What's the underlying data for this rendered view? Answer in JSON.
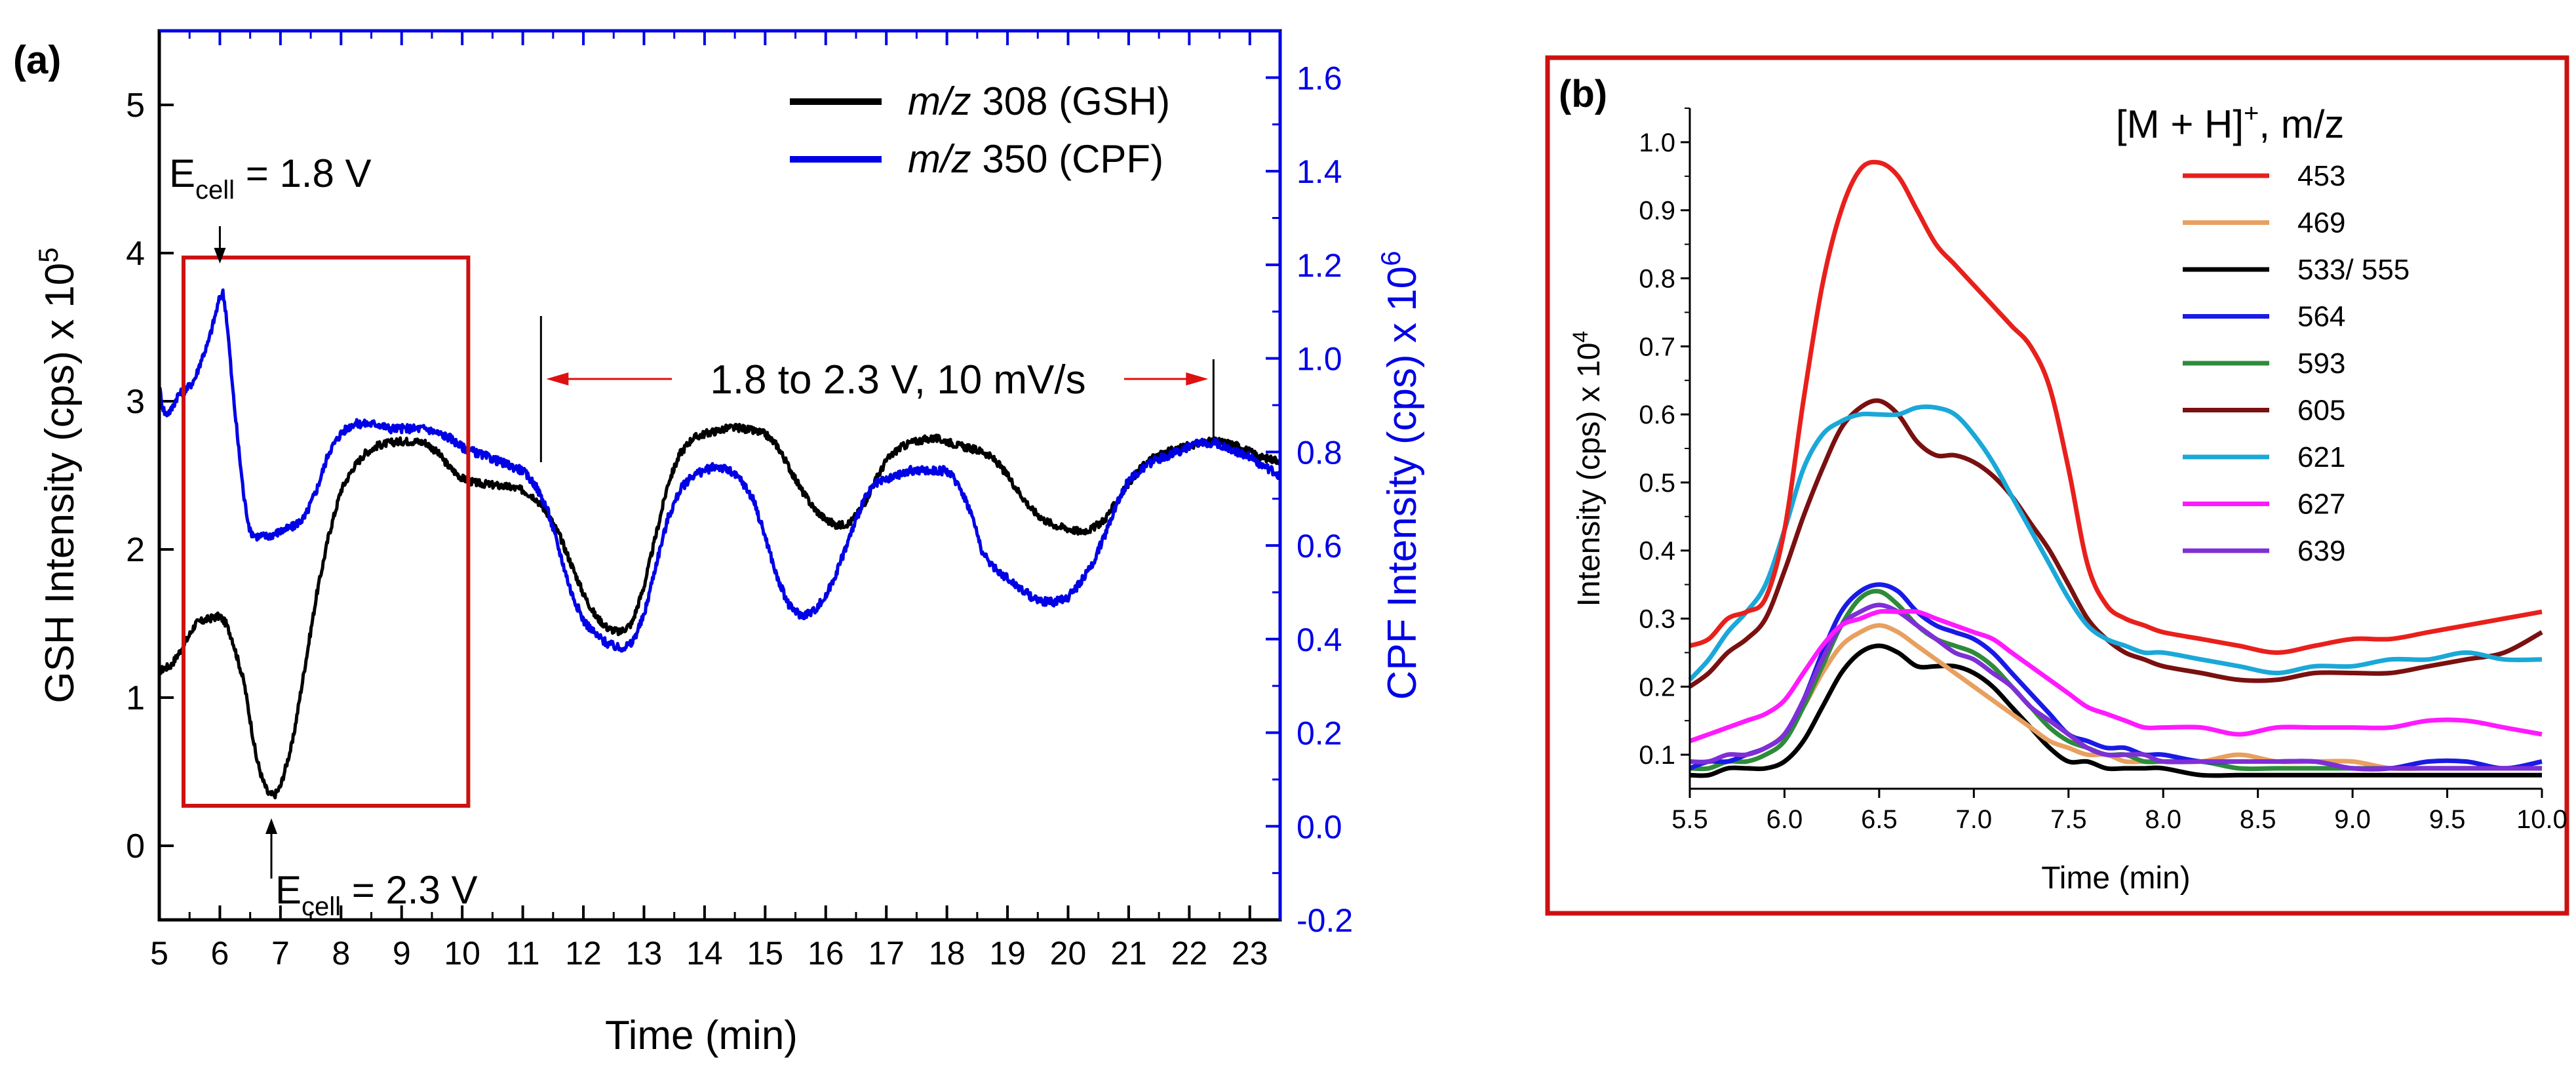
{
  "figure": {
    "panel_a_label": "(a)",
    "panel_b_label": "(b)",
    "colors": {
      "gsh": "#000000",
      "cpf": "#0000e6",
      "red_box": "#cc1111",
      "red_arrow": "#dd1111"
    }
  },
  "chart_data": [
    {
      "type": "line",
      "panel": "(a)",
      "xlabel": "Time (min)",
      "ylabel_left": {
        "text": "GSH Intensity (cps) x 10",
        "superscript": "5"
      },
      "ylabel_right": {
        "text": "CPF Intensity (cps) x 10",
        "superscript": "6"
      },
      "xlim": [
        5,
        23.5
      ],
      "ylim_left": [
        -0.5,
        5.5
      ],
      "ylim_right": [
        -0.2,
        1.7
      ],
      "xticks": [
        5,
        6,
        7,
        8,
        9,
        10,
        11,
        12,
        13,
        14,
        15,
        16,
        17,
        18,
        19,
        20,
        21,
        22,
        23
      ],
      "yticks_left": [
        0,
        1,
        2,
        3,
        4,
        5
      ],
      "yticks_right": [
        -0.2,
        0.0,
        0.2,
        0.4,
        0.6,
        0.8,
        1.0,
        1.2,
        1.4,
        1.6
      ],
      "legend": [
        {
          "prefix": "m/z",
          "text": " 308 (GSH)",
          "color": "#000000"
        },
        {
          "prefix": "m/z",
          "text": " 350 (CPF)",
          "color": "#0000e6"
        }
      ],
      "series": [
        {
          "name": "m/z 308 (GSH)",
          "axis": "left",
          "color": "#000000",
          "x": [
            5.0,
            5.2,
            5.4,
            5.6,
            5.8,
            6.0,
            6.1,
            6.2,
            6.4,
            6.5,
            6.6,
            6.7,
            6.8,
            6.9,
            7.0,
            7.2,
            7.4,
            7.6,
            7.8,
            8.0,
            8.2,
            8.4,
            8.6,
            8.8,
            9.0,
            9.2,
            9.4,
            9.6,
            9.8,
            10.0,
            10.2,
            10.4,
            10.6,
            10.8,
            11.0,
            11.2,
            11.4,
            11.6,
            11.8,
            12.0,
            12.2,
            12.4,
            12.6,
            12.8,
            13.0,
            13.2,
            13.4,
            13.6,
            13.8,
            14.0,
            14.2,
            14.4,
            14.6,
            14.8,
            15.0,
            15.2,
            15.4,
            15.6,
            15.8,
            16.0,
            16.2,
            16.4,
            16.6,
            16.8,
            17.0,
            17.2,
            17.4,
            17.6,
            17.8,
            18.0,
            18.2,
            18.4,
            18.6,
            18.8,
            19.0,
            19.2,
            19.4,
            19.6,
            19.8,
            20.0,
            20.2,
            20.4,
            20.6,
            20.8,
            21.0,
            21.2,
            21.4,
            21.6,
            21.8,
            22.0,
            22.2,
            22.4,
            22.6,
            22.8,
            23.0,
            23.2,
            23.5
          ],
          "y": [
            1.18,
            1.22,
            1.35,
            1.5,
            1.53,
            1.55,
            1.5,
            1.4,
            1.1,
            0.85,
            0.6,
            0.45,
            0.35,
            0.34,
            0.4,
            0.7,
            1.2,
            1.7,
            2.1,
            2.4,
            2.55,
            2.65,
            2.7,
            2.72,
            2.73,
            2.73,
            2.72,
            2.65,
            2.55,
            2.48,
            2.45,
            2.44,
            2.43,
            2.42,
            2.4,
            2.35,
            2.25,
            2.1,
            1.9,
            1.7,
            1.55,
            1.47,
            1.44,
            1.5,
            1.75,
            2.1,
            2.45,
            2.65,
            2.75,
            2.78,
            2.8,
            2.82,
            2.82,
            2.8,
            2.78,
            2.7,
            2.55,
            2.4,
            2.28,
            2.2,
            2.16,
            2.18,
            2.28,
            2.45,
            2.6,
            2.68,
            2.72,
            2.74,
            2.75,
            2.73,
            2.7,
            2.68,
            2.66,
            2.6,
            2.5,
            2.38,
            2.27,
            2.2,
            2.16,
            2.14,
            2.12,
            2.14,
            2.2,
            2.32,
            2.45,
            2.55,
            2.62,
            2.65,
            2.68,
            2.7,
            2.72,
            2.73,
            2.72,
            2.7,
            2.66,
            2.62,
            2.6
          ]
        },
        {
          "name": "m/z 350 (CPF)",
          "axis": "right",
          "color": "#0000e6",
          "x": [
            5.0,
            5.05,
            5.1,
            5.2,
            5.3,
            5.5,
            5.6,
            5.7,
            5.8,
            5.9,
            6.0,
            6.05,
            6.1,
            6.15,
            6.2,
            6.3,
            6.4,
            6.5,
            6.6,
            6.8,
            7.0,
            7.2,
            7.4,
            7.6,
            7.8,
            8.0,
            8.2,
            8.4,
            8.6,
            8.8,
            9.0,
            9.2,
            9.4,
            9.6,
            9.8,
            10.0,
            10.2,
            10.4,
            10.6,
            10.8,
            11.0,
            11.2,
            11.4,
            11.6,
            11.8,
            12.0,
            12.2,
            12.4,
            12.6,
            12.8,
            13.0,
            13.2,
            13.4,
            13.6,
            13.8,
            14.0,
            14.2,
            14.4,
            14.6,
            14.8,
            15.0,
            15.2,
            15.4,
            15.6,
            15.8,
            16.0,
            16.2,
            16.4,
            16.6,
            16.8,
            17.0,
            17.2,
            17.4,
            17.6,
            17.8,
            18.0,
            18.2,
            18.4,
            18.6,
            18.8,
            19.0,
            19.2,
            19.4,
            19.6,
            19.8,
            20.0,
            20.2,
            20.4,
            20.6,
            20.8,
            21.0,
            21.2,
            21.4,
            21.6,
            21.8,
            22.0,
            22.2,
            22.4,
            22.6,
            22.8,
            23.0,
            23.2,
            23.5
          ],
          "y": [
            0.94,
            0.9,
            0.88,
            0.89,
            0.92,
            0.94,
            0.96,
            1.0,
            1.03,
            1.08,
            1.13,
            1.14,
            1.1,
            1.03,
            0.95,
            0.82,
            0.7,
            0.63,
            0.62,
            0.62,
            0.63,
            0.64,
            0.66,
            0.72,
            0.8,
            0.84,
            0.86,
            0.86,
            0.86,
            0.85,
            0.85,
            0.85,
            0.85,
            0.84,
            0.83,
            0.81,
            0.8,
            0.79,
            0.78,
            0.77,
            0.76,
            0.73,
            0.68,
            0.59,
            0.5,
            0.44,
            0.41,
            0.39,
            0.38,
            0.39,
            0.45,
            0.56,
            0.66,
            0.72,
            0.75,
            0.76,
            0.77,
            0.76,
            0.74,
            0.7,
            0.62,
            0.53,
            0.47,
            0.45,
            0.46,
            0.49,
            0.55,
            0.62,
            0.69,
            0.73,
            0.74,
            0.75,
            0.76,
            0.76,
            0.76,
            0.76,
            0.73,
            0.67,
            0.58,
            0.55,
            0.53,
            0.51,
            0.49,
            0.48,
            0.48,
            0.49,
            0.52,
            0.56,
            0.62,
            0.69,
            0.74,
            0.76,
            0.78,
            0.79,
            0.8,
            0.81,
            0.82,
            0.82,
            0.81,
            0.8,
            0.79,
            0.77,
            0.75
          ]
        }
      ],
      "annotations": {
        "ecell_top": {
          "text": "E",
          "subscript": "cell",
          "suffix": " = 1.8 V",
          "x": 6.0
        },
        "ecell_bottom": {
          "text": "E",
          "subscript": "cell",
          "suffix": " = 2.3 V",
          "x": 6.85
        },
        "sweep_label": "1.8 to 2.3 V, 10 mV/s",
        "sweep_range": [
          11.3,
          22.4
        ],
        "highlight_box": {
          "x": [
            5.4,
            10.1
          ],
          "y": [
            0.27,
            3.97
          ]
        }
      }
    },
    {
      "type": "line",
      "panel": "(b)",
      "xlabel": "Time (min)",
      "ylabel": {
        "text": "Intensity (cps) x 10",
        "superscript": "4"
      },
      "legend_title": {
        "text": "[M + H]",
        "superscript": "+",
        "suffix": ", m/z"
      },
      "xlim": [
        5.5,
        10.0
      ],
      "ylim": [
        0.05,
        1.05
      ],
      "xticks": [
        5.5,
        6.0,
        6.5,
        7.0,
        7.5,
        8.0,
        8.5,
        9.0,
        9.5,
        10.0
      ],
      "xtick_labels": [
        "5.5",
        "6.0",
        "6.5",
        "7.0",
        "7.5",
        "8.0",
        "8.5",
        "9.0",
        "9.5",
        "10.0"
      ],
      "yticks": [
        0.1,
        0.2,
        0.3,
        0.4,
        0.5,
        0.6,
        0.7,
        0.8,
        0.9,
        1.0
      ],
      "ytick_labels": [
        "0.1",
        "0.2",
        "0.3",
        "0.4",
        "0.5",
        "0.6",
        "0.7",
        "0.8",
        "0.9",
        "1.0"
      ],
      "x": [
        5.5,
        5.6,
        5.7,
        5.8,
        5.9,
        6.0,
        6.1,
        6.2,
        6.3,
        6.4,
        6.5,
        6.6,
        6.7,
        6.8,
        6.9,
        7.0,
        7.1,
        7.2,
        7.3,
        7.4,
        7.5,
        7.6,
        7.7,
        7.8,
        7.9,
        8.0,
        8.2,
        8.4,
        8.6,
        8.8,
        9.0,
        9.2,
        9.4,
        9.6,
        9.8,
        10.0
      ],
      "series": [
        {
          "name": "453",
          "color": "#e8201c",
          "values": [
            0.26,
            0.27,
            0.3,
            0.31,
            0.33,
            0.43,
            0.62,
            0.79,
            0.9,
            0.96,
            0.97,
            0.95,
            0.9,
            0.85,
            0.82,
            0.79,
            0.76,
            0.73,
            0.7,
            0.64,
            0.52,
            0.38,
            0.32,
            0.3,
            0.29,
            0.28,
            0.27,
            0.26,
            0.25,
            0.26,
            0.27,
            0.27,
            0.28,
            0.29,
            0.3,
            0.31
          ]
        },
        {
          "name": "469",
          "color": "#e8a060",
          "values": [
            0.08,
            0.09,
            0.09,
            0.1,
            0.11,
            0.13,
            0.17,
            0.22,
            0.26,
            0.28,
            0.29,
            0.28,
            0.26,
            0.24,
            0.22,
            0.2,
            0.18,
            0.16,
            0.14,
            0.12,
            0.11,
            0.1,
            0.1,
            0.09,
            0.09,
            0.09,
            0.09,
            0.1,
            0.09,
            0.09,
            0.09,
            0.08,
            0.08,
            0.08,
            0.08,
            0.08
          ]
        },
        {
          "name": "533/ 555",
          "color": "#000000",
          "values": [
            0.07,
            0.07,
            0.08,
            0.08,
            0.08,
            0.09,
            0.12,
            0.17,
            0.22,
            0.25,
            0.26,
            0.25,
            0.23,
            0.23,
            0.23,
            0.22,
            0.2,
            0.17,
            0.14,
            0.11,
            0.09,
            0.09,
            0.08,
            0.08,
            0.08,
            0.08,
            0.07,
            0.07,
            0.07,
            0.07,
            0.07,
            0.07,
            0.07,
            0.07,
            0.07,
            0.07
          ]
        },
        {
          "name": "564",
          "color": "#1a1ae6",
          "values": [
            0.08,
            0.09,
            0.09,
            0.1,
            0.11,
            0.13,
            0.18,
            0.25,
            0.31,
            0.34,
            0.35,
            0.34,
            0.31,
            0.29,
            0.28,
            0.27,
            0.25,
            0.22,
            0.19,
            0.16,
            0.13,
            0.12,
            0.11,
            0.11,
            0.1,
            0.1,
            0.09,
            0.09,
            0.09,
            0.09,
            0.08,
            0.08,
            0.09,
            0.09,
            0.08,
            0.09
          ]
        },
        {
          "name": "593",
          "color": "#2e8b3a",
          "values": [
            0.08,
            0.08,
            0.09,
            0.09,
            0.1,
            0.12,
            0.17,
            0.23,
            0.29,
            0.33,
            0.34,
            0.32,
            0.29,
            0.27,
            0.26,
            0.25,
            0.23,
            0.2,
            0.17,
            0.14,
            0.12,
            0.11,
            0.1,
            0.1,
            0.09,
            0.09,
            0.09,
            0.08,
            0.08,
            0.08,
            0.08,
            0.08,
            0.08,
            0.08,
            0.08,
            0.08
          ]
        },
        {
          "name": "605",
          "color": "#7a1010",
          "values": [
            0.2,
            0.22,
            0.25,
            0.27,
            0.3,
            0.37,
            0.45,
            0.52,
            0.58,
            0.61,
            0.62,
            0.6,
            0.56,
            0.54,
            0.54,
            0.53,
            0.51,
            0.48,
            0.44,
            0.4,
            0.35,
            0.3,
            0.27,
            0.25,
            0.24,
            0.23,
            0.22,
            0.21,
            0.21,
            0.22,
            0.22,
            0.22,
            0.23,
            0.24,
            0.25,
            0.28
          ]
        },
        {
          "name": "621",
          "color": "#1aa8d8",
          "values": [
            0.21,
            0.24,
            0.28,
            0.31,
            0.35,
            0.43,
            0.52,
            0.57,
            0.59,
            0.6,
            0.6,
            0.6,
            0.61,
            0.61,
            0.6,
            0.57,
            0.53,
            0.48,
            0.43,
            0.38,
            0.33,
            0.29,
            0.27,
            0.26,
            0.25,
            0.25,
            0.24,
            0.23,
            0.22,
            0.23,
            0.23,
            0.24,
            0.24,
            0.25,
            0.24,
            0.24
          ]
        },
        {
          "name": "627",
          "color": "#ff1aff",
          "values": [
            0.12,
            0.13,
            0.14,
            0.15,
            0.16,
            0.18,
            0.22,
            0.26,
            0.29,
            0.3,
            0.31,
            0.31,
            0.31,
            0.3,
            0.29,
            0.28,
            0.27,
            0.25,
            0.23,
            0.21,
            0.19,
            0.17,
            0.16,
            0.15,
            0.14,
            0.14,
            0.14,
            0.13,
            0.14,
            0.14,
            0.14,
            0.14,
            0.15,
            0.15,
            0.14,
            0.13
          ]
        },
        {
          "name": "639",
          "color": "#7f2fd6",
          "values": [
            0.09,
            0.09,
            0.1,
            0.1,
            0.11,
            0.13,
            0.18,
            0.24,
            0.29,
            0.31,
            0.32,
            0.31,
            0.29,
            0.27,
            0.25,
            0.24,
            0.22,
            0.2,
            0.17,
            0.15,
            0.13,
            0.11,
            0.1,
            0.1,
            0.1,
            0.09,
            0.09,
            0.09,
            0.09,
            0.09,
            0.08,
            0.08,
            0.08,
            0.08,
            0.08,
            0.08
          ]
        }
      ]
    }
  ]
}
